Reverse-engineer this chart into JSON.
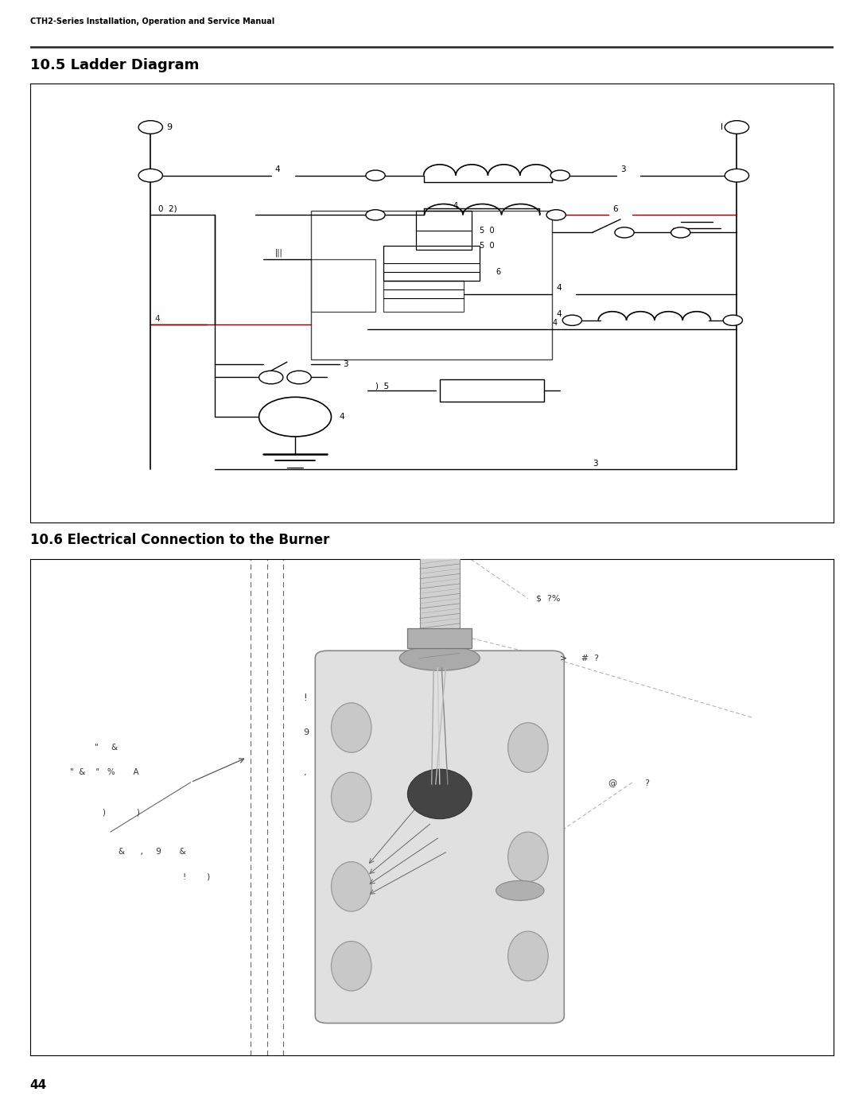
{
  "page_title": "CTH2-Series Installation, Operation and Service Manual",
  "section1_title": "10.5 Ladder Diagram",
  "section2_title": "10.6 Electrical Connection to the Burner",
  "page_number": "44",
  "bg_color": "#ffffff",
  "lc": "#000000",
  "rc": "#8b0000",
  "gc": "#555555",
  "burner_labels": {
    "a": "$  ?%",
    "b": ">     #  ?",
    "c": "!",
    "d": "9",
    "e": "’",
    "f": "@          ?",
    "g_line1": "\"     &",
    "g_line2": "\"  &    \"   %       A",
    "i": ")            )",
    "j_line1": "&      ,     9       &",
    "j_line2": "!        )",
    "k": "&"
  }
}
